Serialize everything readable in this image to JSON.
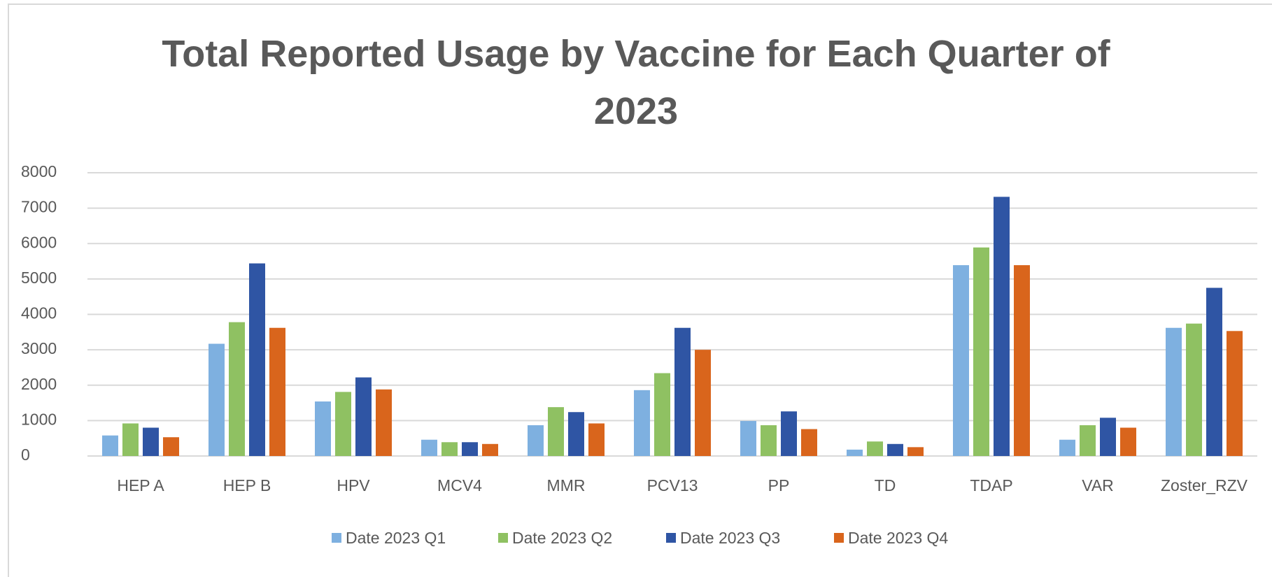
{
  "chart_data": {
    "type": "bar",
    "title": "Total Reported Usage by Vaccine for Each Quarter of 2023",
    "categories": [
      "HEP A",
      "HEP B",
      "HPV",
      "MCV4",
      "MMR",
      "PCV13",
      "PP",
      "TD",
      "TDAP",
      "VAR",
      "Zoster_RZV"
    ],
    "series": [
      {
        "name": "Date 2023 Q1",
        "color": "#7eb0e0",
        "values": [
          580,
          3170,
          1540,
          460,
          870,
          1860,
          990,
          180,
          5390,
          460,
          3620
        ]
      },
      {
        "name": "Date 2023 Q2",
        "color": "#8fc162",
        "values": [
          920,
          3780,
          1810,
          390,
          1380,
          2340,
          870,
          410,
          5890,
          870,
          3740
        ]
      },
      {
        "name": "Date 2023 Q3",
        "color": "#2f55a4",
        "values": [
          800,
          5440,
          2220,
          390,
          1240,
          3620,
          1260,
          340,
          7320,
          1080,
          4750
        ]
      },
      {
        "name": "Date 2023 Q4",
        "color": "#d9651c",
        "values": [
          530,
          3620,
          1880,
          340,
          920,
          3000,
          760,
          250,
          5390,
          800,
          3530
        ]
      }
    ],
    "ylim": [
      0,
      8000
    ],
    "yticks": [
      0,
      1000,
      2000,
      3000,
      4000,
      5000,
      6000,
      7000,
      8000
    ],
    "grid": true,
    "legend": "bottom"
  }
}
